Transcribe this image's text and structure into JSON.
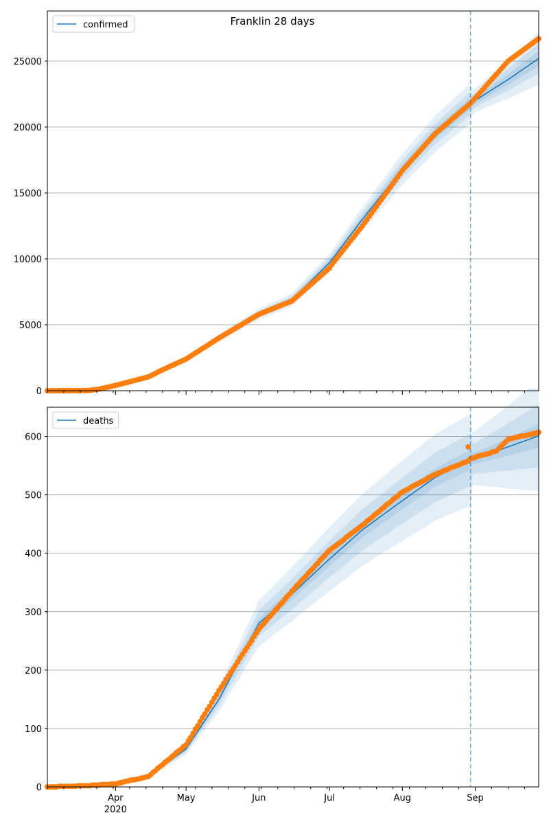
{
  "title": "Franklin 28 days",
  "colors": {
    "model": "#1f77b4",
    "observed": "#ff7f0e",
    "band": "#1f77b4",
    "forecast_line": "#1f77b4",
    "grid": "#b0b0b0"
  },
  "chart_data": [
    {
      "type": "line",
      "name": "confirmed-panel",
      "legend": [
        "confirmed"
      ],
      "legend_position": "top-left",
      "grid": "horizontal",
      "xlim": [
        "2020-03-03",
        "2020-09-28"
      ],
      "ylim": [
        0,
        28800
      ],
      "yticks": [
        0,
        5000,
        10000,
        15000,
        20000,
        25000
      ],
      "forecast_start": "2020-08-30",
      "model_anchors": [
        {
          "date": "2020-03-03",
          "y": 0
        },
        {
          "date": "2020-03-20",
          "y": 10
        },
        {
          "date": "2020-03-25",
          "y": 150
        },
        {
          "date": "2020-04-01",
          "y": 420
        },
        {
          "date": "2020-04-15",
          "y": 1000
        },
        {
          "date": "2020-05-01",
          "y": 2400
        },
        {
          "date": "2020-05-15",
          "y": 4000
        },
        {
          "date": "2020-06-01",
          "y": 5800
        },
        {
          "date": "2020-06-15",
          "y": 6900
        },
        {
          "date": "2020-07-01",
          "y": 9700
        },
        {
          "date": "2020-07-15",
          "y": 13000
        },
        {
          "date": "2020-08-01",
          "y": 16800
        },
        {
          "date": "2020-08-15",
          "y": 19500
        },
        {
          "date": "2020-08-30",
          "y": 21800
        },
        {
          "date": "2020-09-15",
          "y": 23600
        },
        {
          "date": "2020-09-28",
          "y": 25200
        }
      ],
      "band_spread": [
        0.02,
        0.04,
        0.07
      ],
      "observed_anchors": [
        {
          "date": "2020-03-03",
          "y": 0
        },
        {
          "date": "2020-03-20",
          "y": 10
        },
        {
          "date": "2020-03-25",
          "y": 120
        },
        {
          "date": "2020-04-01",
          "y": 400
        },
        {
          "date": "2020-04-15",
          "y": 1050
        },
        {
          "date": "2020-04-20",
          "y": 1500
        },
        {
          "date": "2020-05-01",
          "y": 2400
        },
        {
          "date": "2020-05-15",
          "y": 4000
        },
        {
          "date": "2020-06-01",
          "y": 5800
        },
        {
          "date": "2020-06-15",
          "y": 6800
        },
        {
          "date": "2020-07-01",
          "y": 9300
        },
        {
          "date": "2020-07-03",
          "y": 9800
        },
        {
          "date": "2020-07-15",
          "y": 12500
        },
        {
          "date": "2020-08-01",
          "y": 16700
        },
        {
          "date": "2020-08-15",
          "y": 19500
        },
        {
          "date": "2020-08-30",
          "y": 21800
        },
        {
          "date": "2020-09-15",
          "y": 25000
        },
        {
          "date": "2020-09-28",
          "y": 26700
        }
      ]
    },
    {
      "type": "line",
      "name": "deaths-panel",
      "legend": [
        "deaths"
      ],
      "legend_position": "top-left",
      "grid": "horizontal",
      "xlim": [
        "2020-03-03",
        "2020-09-28"
      ],
      "ylim": [
        0,
        650
      ],
      "yticks": [
        0,
        100,
        200,
        300,
        400,
        500,
        600
      ],
      "forecast_start": "2020-08-30",
      "model_anchors": [
        {
          "date": "2020-03-03",
          "y": 0
        },
        {
          "date": "2020-03-28",
          "y": 1
        },
        {
          "date": "2020-04-01",
          "y": 5
        },
        {
          "date": "2020-04-15",
          "y": 18
        },
        {
          "date": "2020-05-01",
          "y": 65
        },
        {
          "date": "2020-05-15",
          "y": 150
        },
        {
          "date": "2020-06-01",
          "y": 280
        },
        {
          "date": "2020-06-15",
          "y": 330
        },
        {
          "date": "2020-07-01",
          "y": 390
        },
        {
          "date": "2020-07-15",
          "y": 440
        },
        {
          "date": "2020-08-01",
          "y": 490
        },
        {
          "date": "2020-08-15",
          "y": 530
        },
        {
          "date": "2020-08-30",
          "y": 560
        },
        {
          "date": "2020-09-15",
          "y": 582
        },
        {
          "date": "2020-09-28",
          "y": 601
        }
      ],
      "band_spread": [
        0.03,
        0.08,
        0.14
      ],
      "observed_anchors": [
        {
          "date": "2020-03-03",
          "y": 0
        },
        {
          "date": "2020-03-20",
          "y": 2
        },
        {
          "date": "2020-04-01",
          "y": 5
        },
        {
          "date": "2020-04-15",
          "y": 18
        },
        {
          "date": "2020-05-01",
          "y": 72
        },
        {
          "date": "2020-05-15",
          "y": 165
        },
        {
          "date": "2020-06-01",
          "y": 270
        },
        {
          "date": "2020-06-15",
          "y": 335
        },
        {
          "date": "2020-07-01",
          "y": 405
        },
        {
          "date": "2020-07-15",
          "y": 448
        },
        {
          "date": "2020-08-01",
          "y": 505
        },
        {
          "date": "2020-08-15",
          "y": 535
        },
        {
          "date": "2020-08-29",
          "y": 558
        },
        {
          "date": "2020-08-30",
          "y": 562
        },
        {
          "date": "2020-09-10",
          "y": 575
        },
        {
          "date": "2020-09-15",
          "y": 595
        },
        {
          "date": "2020-09-28",
          "y": 607
        }
      ],
      "observed_outliers": [
        {
          "date": "2020-08-29",
          "y": 582
        }
      ]
    }
  ],
  "x_axis": {
    "tick_labels": [
      {
        "date": "2020-04-01",
        "label": "Apr",
        "sublabel": "2020"
      },
      {
        "date": "2020-05-01",
        "label": "May",
        "sublabel": ""
      },
      {
        "date": "2020-06-01",
        "label": "Jun",
        "sublabel": ""
      },
      {
        "date": "2020-07-01",
        "label": "Jul",
        "sublabel": ""
      },
      {
        "date": "2020-08-01",
        "label": "Aug",
        "sublabel": ""
      },
      {
        "date": "2020-09-01",
        "label": "Sep",
        "sublabel": ""
      }
    ]
  }
}
